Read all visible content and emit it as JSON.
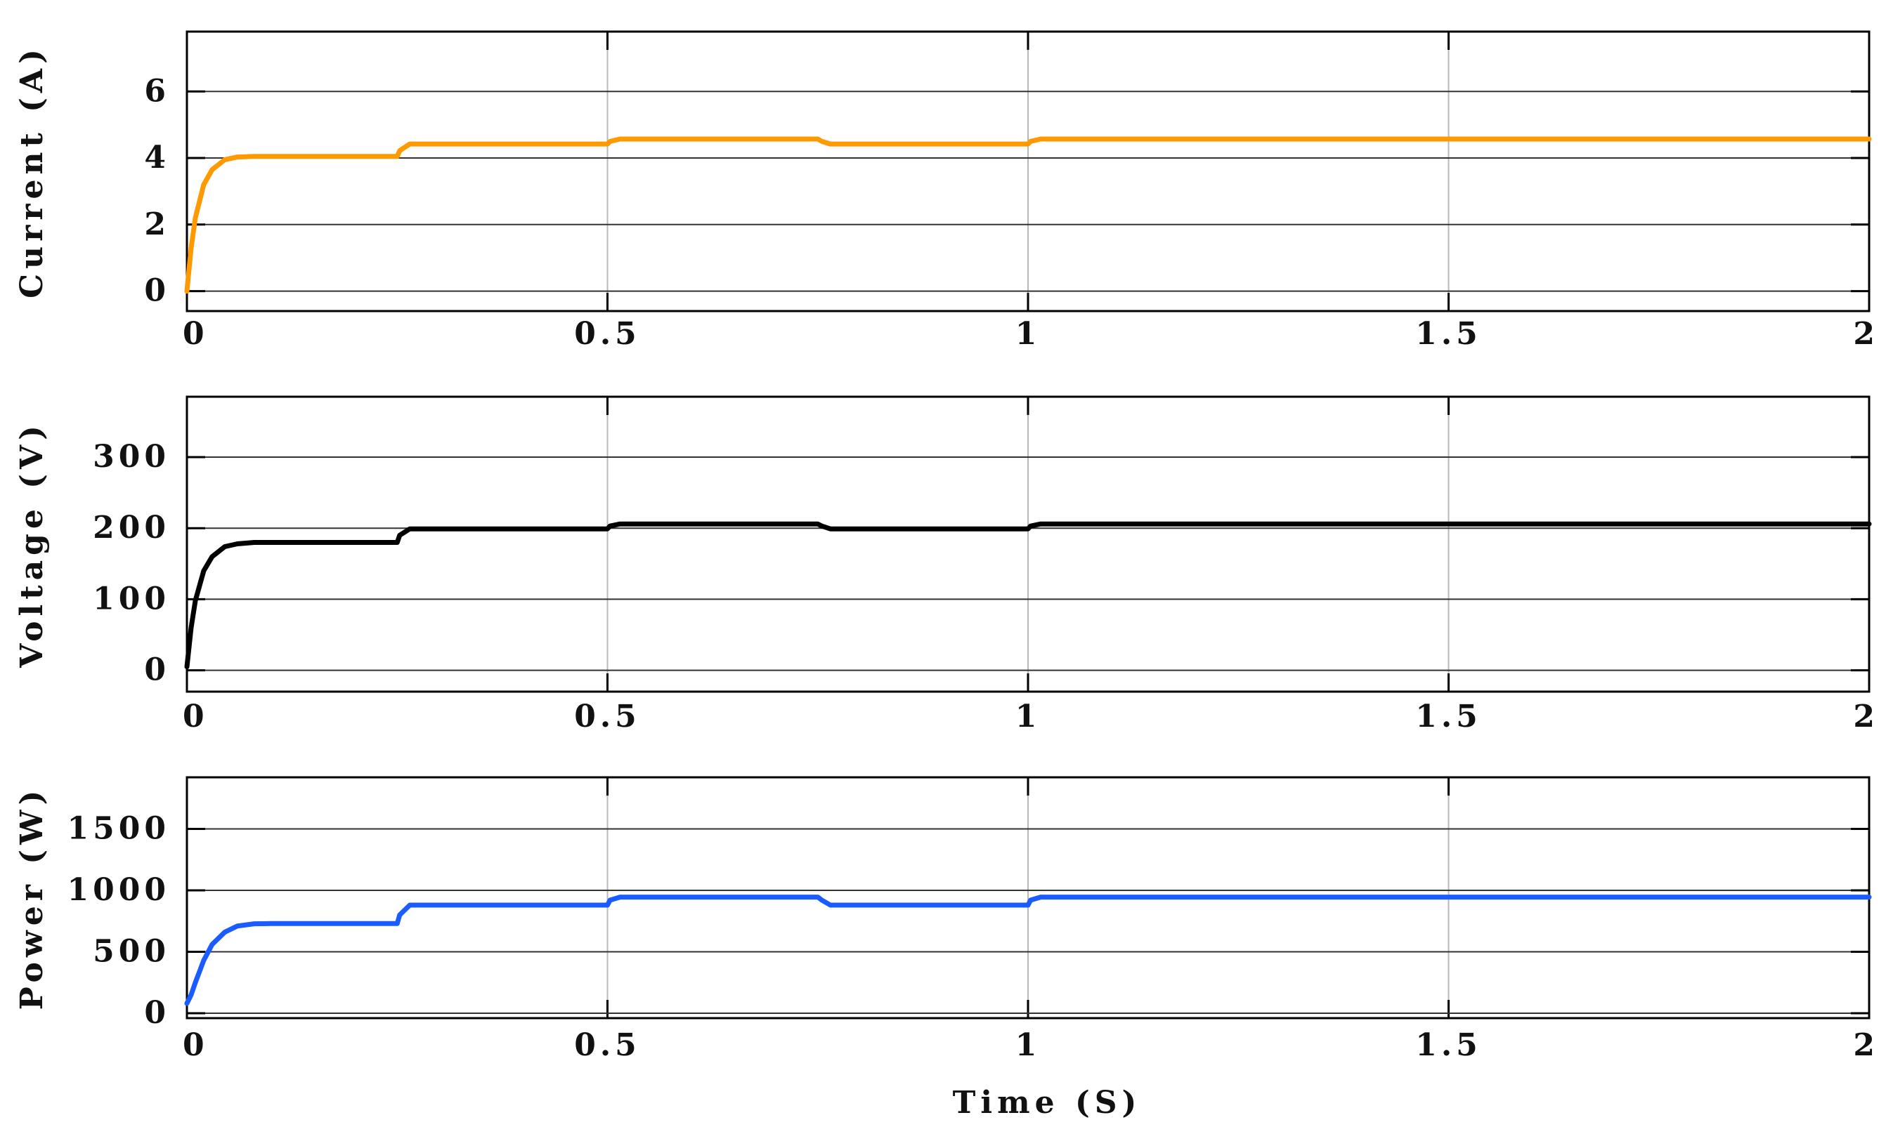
{
  "chart_data": [
    {
      "type": "line",
      "ylabel": "Current (A)",
      "xlabel": "",
      "xlim": [
        0,
        2
      ],
      "ylim": [
        -0.6,
        7.8
      ],
      "xticks": [
        0,
        0.5,
        1,
        1.5,
        2
      ],
      "xtick_labels": [
        "0",
        "0.5",
        "1",
        "1.5",
        "2"
      ],
      "yticks": [
        0,
        2,
        4,
        6
      ],
      "ytick_labels": [
        "0",
        "2",
        "4",
        "6"
      ],
      "grid": true,
      "series": [
        {
          "color": "#ff9900",
          "x": [
            0,
            0.005,
            0.01,
            0.02,
            0.03,
            0.045,
            0.06,
            0.08,
            0.1,
            0.15,
            0.2,
            0.25,
            0.253,
            0.265,
            0.3,
            0.4,
            0.5,
            0.503,
            0.515,
            0.6,
            0.7,
            0.75,
            0.755,
            0.765,
            0.8,
            0.9,
            1.0,
            1.003,
            1.015,
            1.2,
            1.5,
            1.8,
            2.0
          ],
          "y": [
            0,
            1.3,
            2.2,
            3.2,
            3.65,
            3.95,
            4.03,
            4.05,
            4.05,
            4.05,
            4.05,
            4.05,
            4.22,
            4.42,
            4.42,
            4.42,
            4.42,
            4.5,
            4.57,
            4.57,
            4.57,
            4.57,
            4.5,
            4.42,
            4.42,
            4.42,
            4.42,
            4.5,
            4.57,
            4.57,
            4.57,
            4.57,
            4.57
          ]
        }
      ]
    },
    {
      "type": "line",
      "ylabel": "Voltage (V)",
      "xlabel": "",
      "xlim": [
        0,
        2
      ],
      "ylim": [
        -30,
        385
      ],
      "xticks": [
        0,
        0.5,
        1,
        1.5,
        2
      ],
      "xtick_labels": [
        "0",
        "0.5",
        "1",
        "1.5",
        "2"
      ],
      "yticks": [
        0,
        100,
        200,
        300
      ],
      "ytick_labels": [
        "0",
        "100",
        "200",
        "300"
      ],
      "grid": true,
      "series": [
        {
          "color": "#000000",
          "x": [
            0,
            0.005,
            0.01,
            0.02,
            0.03,
            0.045,
            0.06,
            0.08,
            0.1,
            0.15,
            0.2,
            0.25,
            0.253,
            0.265,
            0.3,
            0.4,
            0.5,
            0.503,
            0.515,
            0.6,
            0.7,
            0.75,
            0.755,
            0.765,
            0.8,
            0.9,
            1.0,
            1.003,
            1.015,
            1.2,
            1.5,
            1.8,
            2.0
          ],
          "y": [
            5,
            60,
            98,
            140,
            160,
            174,
            178,
            180,
            180,
            180,
            180,
            180,
            190,
            199,
            199,
            199,
            199,
            203,
            206,
            206,
            206,
            206,
            203,
            199,
            199,
            199,
            199,
            203,
            206,
            206,
            206,
            206,
            206
          ]
        }
      ]
    },
    {
      "type": "line",
      "ylabel": "Power (W)",
      "xlabel": "Time (S)",
      "xlim": [
        0,
        2
      ],
      "ylim": [
        -40,
        1920
      ],
      "xticks": [
        0,
        0.5,
        1,
        1.5,
        2
      ],
      "xtick_labels": [
        "0",
        "0.5",
        "1",
        "1.5",
        "2"
      ],
      "yticks": [
        0,
        500,
        1000,
        1500
      ],
      "ytick_labels": [
        "0",
        "500",
        "1000",
        "1500"
      ],
      "grid": true,
      "series": [
        {
          "color": "#1a5cff",
          "x": [
            0,
            0.005,
            0.01,
            0.02,
            0.03,
            0.045,
            0.06,
            0.08,
            0.1,
            0.15,
            0.2,
            0.25,
            0.253,
            0.265,
            0.3,
            0.4,
            0.5,
            0.503,
            0.515,
            0.6,
            0.7,
            0.75,
            0.755,
            0.765,
            0.8,
            0.9,
            1.0,
            1.003,
            1.015,
            1.2,
            1.5,
            1.8,
            2.0
          ],
          "y": [
            80,
            150,
            250,
            430,
            560,
            660,
            710,
            728,
            730,
            730,
            730,
            730,
            800,
            880,
            880,
            880,
            880,
            920,
            945,
            945,
            945,
            945,
            920,
            880,
            880,
            880,
            880,
            920,
            945,
            945,
            945,
            945,
            945
          ]
        }
      ]
    }
  ]
}
